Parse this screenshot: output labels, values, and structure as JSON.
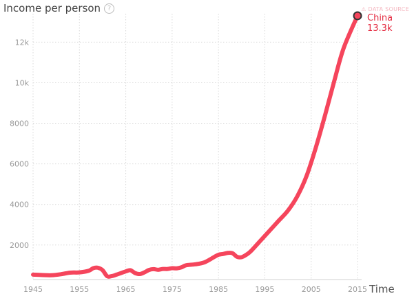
{
  "header": {
    "y_axis_label": "Income per person",
    "help_glyph": "?",
    "data_source_label": "⚠ DATA SOURCE"
  },
  "x_axis": {
    "label": "Time"
  },
  "end_label": {
    "name": "China",
    "value": "13.3k",
    "text": "China 13.3k"
  },
  "colors": {
    "line": "#f5455c",
    "dot_stroke": "#333333",
    "grid": "#d8d8d8"
  },
  "chart_data": {
    "type": "line",
    "title": "",
    "xlabel": "Time",
    "ylabel": "Income per person",
    "xlim": [
      1945,
      2016
    ],
    "ylim": [
      300,
      13600
    ],
    "x_ticks": [
      1945,
      1955,
      1965,
      1975,
      1985,
      1995,
      2005,
      2015
    ],
    "x_tick_labels": [
      "1945",
      "1955",
      "1965",
      "1975",
      "1985",
      "1995",
      "2005",
      "2015"
    ],
    "y_ticks": [
      2000,
      4000,
      6000,
      8000,
      10000,
      12000
    ],
    "y_tick_labels": [
      "2000",
      "4000",
      "6000",
      "8000",
      "10k",
      "12k"
    ],
    "grid": true,
    "legend": "none",
    "series": [
      {
        "name": "China",
        "x": [
          1945,
          1947,
          1949,
          1951,
          1953,
          1955,
          1957,
          1958,
          1959,
          1960,
          1961,
          1962,
          1963,
          1964,
          1965,
          1966,
          1967,
          1968,
          1969,
          1970,
          1971,
          1972,
          1973,
          1974,
          1975,
          1976,
          1977,
          1978,
          1980,
          1982,
          1984,
          1985,
          1986,
          1987,
          1988,
          1989,
          1990,
          1991,
          1992,
          1994,
          1996,
          1998,
          2000,
          2002,
          2004,
          2006,
          2008,
          2010,
          2012,
          2015
        ],
        "y": [
          540,
          520,
          510,
          560,
          640,
          650,
          730,
          860,
          880,
          760,
          460,
          470,
          540,
          620,
          700,
          760,
          620,
          570,
          650,
          770,
          810,
          780,
          820,
          820,
          860,
          850,
          900,
          1000,
          1050,
          1150,
          1400,
          1520,
          1560,
          1610,
          1600,
          1420,
          1400,
          1520,
          1700,
          2200,
          2700,
          3200,
          3700,
          4400,
          5400,
          6800,
          8400,
          10100,
          11700,
          13300
        ]
      }
    ]
  }
}
